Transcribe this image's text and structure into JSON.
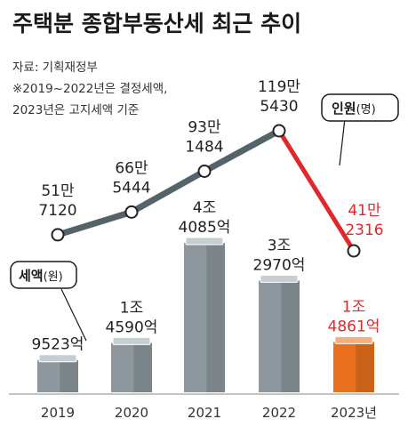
{
  "header": {
    "title": "주택분 종합부동산세 최근 추이",
    "source": "자료: 기획재정부",
    "note_line1": "※2019~2022년은 결정세액,",
    "note_line2": "2023년은 고지세액 기준"
  },
  "legend": {
    "people_label": "인원",
    "people_unit": "(명)",
    "tax_label": "세액",
    "tax_unit": "(원)"
  },
  "colors": {
    "bar_gray": "#8d979d",
    "bar_gray_light": "#c7ced2",
    "bar_highlight": "#e8701e",
    "line_gray": "#54626a",
    "line_red": "#e0282d",
    "text_red": "#e0282d"
  },
  "chart_data": {
    "type": "bar+line",
    "categories": [
      "2019",
      "2020",
      "2021",
      "2022",
      "2023년"
    ],
    "tax": {
      "name": "세액",
      "unit": "원",
      "values": [
        952300000000,
        1459000000000,
        4408500000000,
        3297000000000,
        1486100000000
      ],
      "labels": [
        [
          "9523억"
        ],
        [
          "1조",
          "4590억"
        ],
        [
          "4조",
          "4085억"
        ],
        [
          "3조",
          "2970억"
        ],
        [
          "1조",
          "4861억"
        ]
      ]
    },
    "people": {
      "name": "인원",
      "unit": "명",
      "values": [
        517120,
        665444,
        931484,
        1195430,
        412316
      ],
      "labels": [
        [
          "51만",
          "7120"
        ],
        [
          "66만",
          "5444"
        ],
        [
          "93만",
          "1484"
        ],
        [
          "119만",
          "5430"
        ],
        [
          "41만",
          "2316"
        ]
      ]
    }
  }
}
